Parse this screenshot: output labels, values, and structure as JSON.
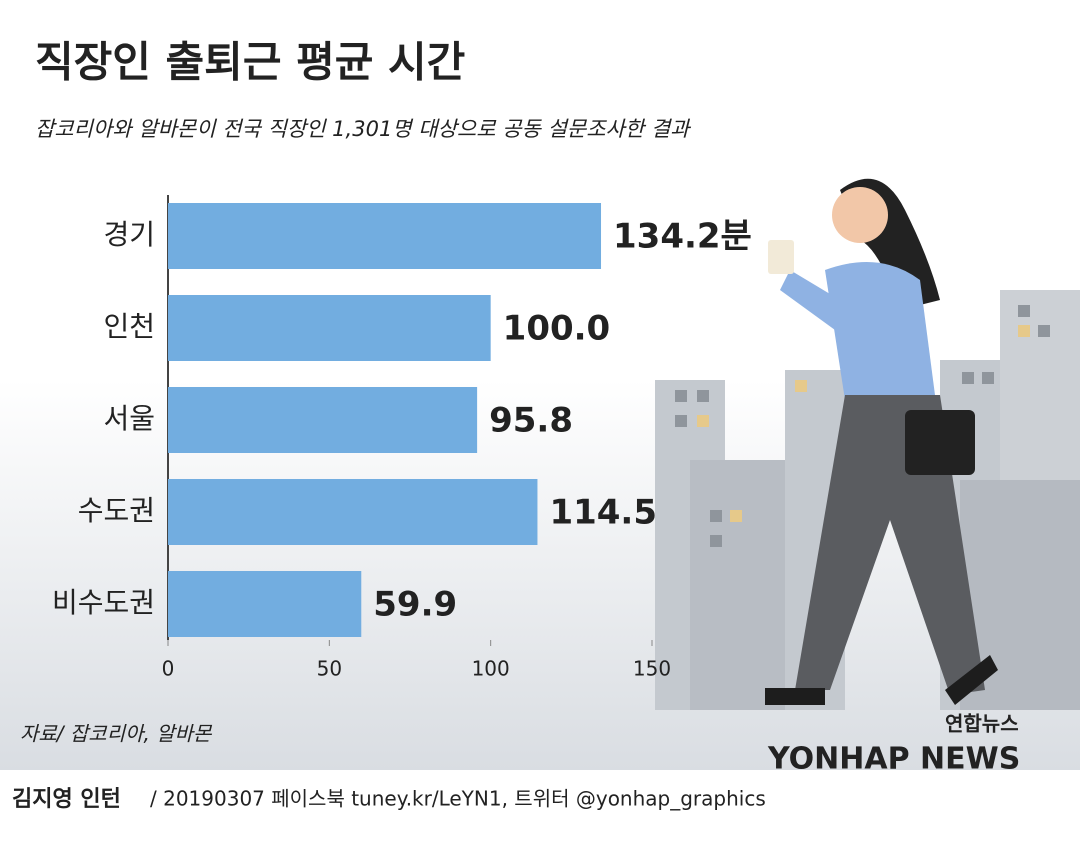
{
  "chart_data": {
    "type": "hbar",
    "title": "직장인 출퇴근 평균 시간",
    "subtitle": "잡코리아와 알바몬이 전국 직장인 1,301명 대상으로 공동 설문조사한 결과",
    "categories": [
      "경기",
      "인천",
      "서울",
      "수도권",
      "비수도권"
    ],
    "values": [
      134.2,
      100.0,
      95.8,
      114.5,
      59.9
    ],
    "value_labels": [
      "134.2분",
      "100.0",
      "95.8",
      "114.5",
      "59.9"
    ],
    "color": "#72ade0",
    "xlim": [
      0,
      150
    ],
    "xticks": [
      0,
      50,
      100,
      150
    ],
    "source": "자료/ 잡코리아, 알바몬",
    "logo": "연합뉴스",
    "logo_en": "YONHAP NEWS",
    "credit": "김지영 인턴",
    "footer": "/ 20190307 페이스북 tuney.kr/LeYN1, 트위터 @yonhap_graphics"
  }
}
